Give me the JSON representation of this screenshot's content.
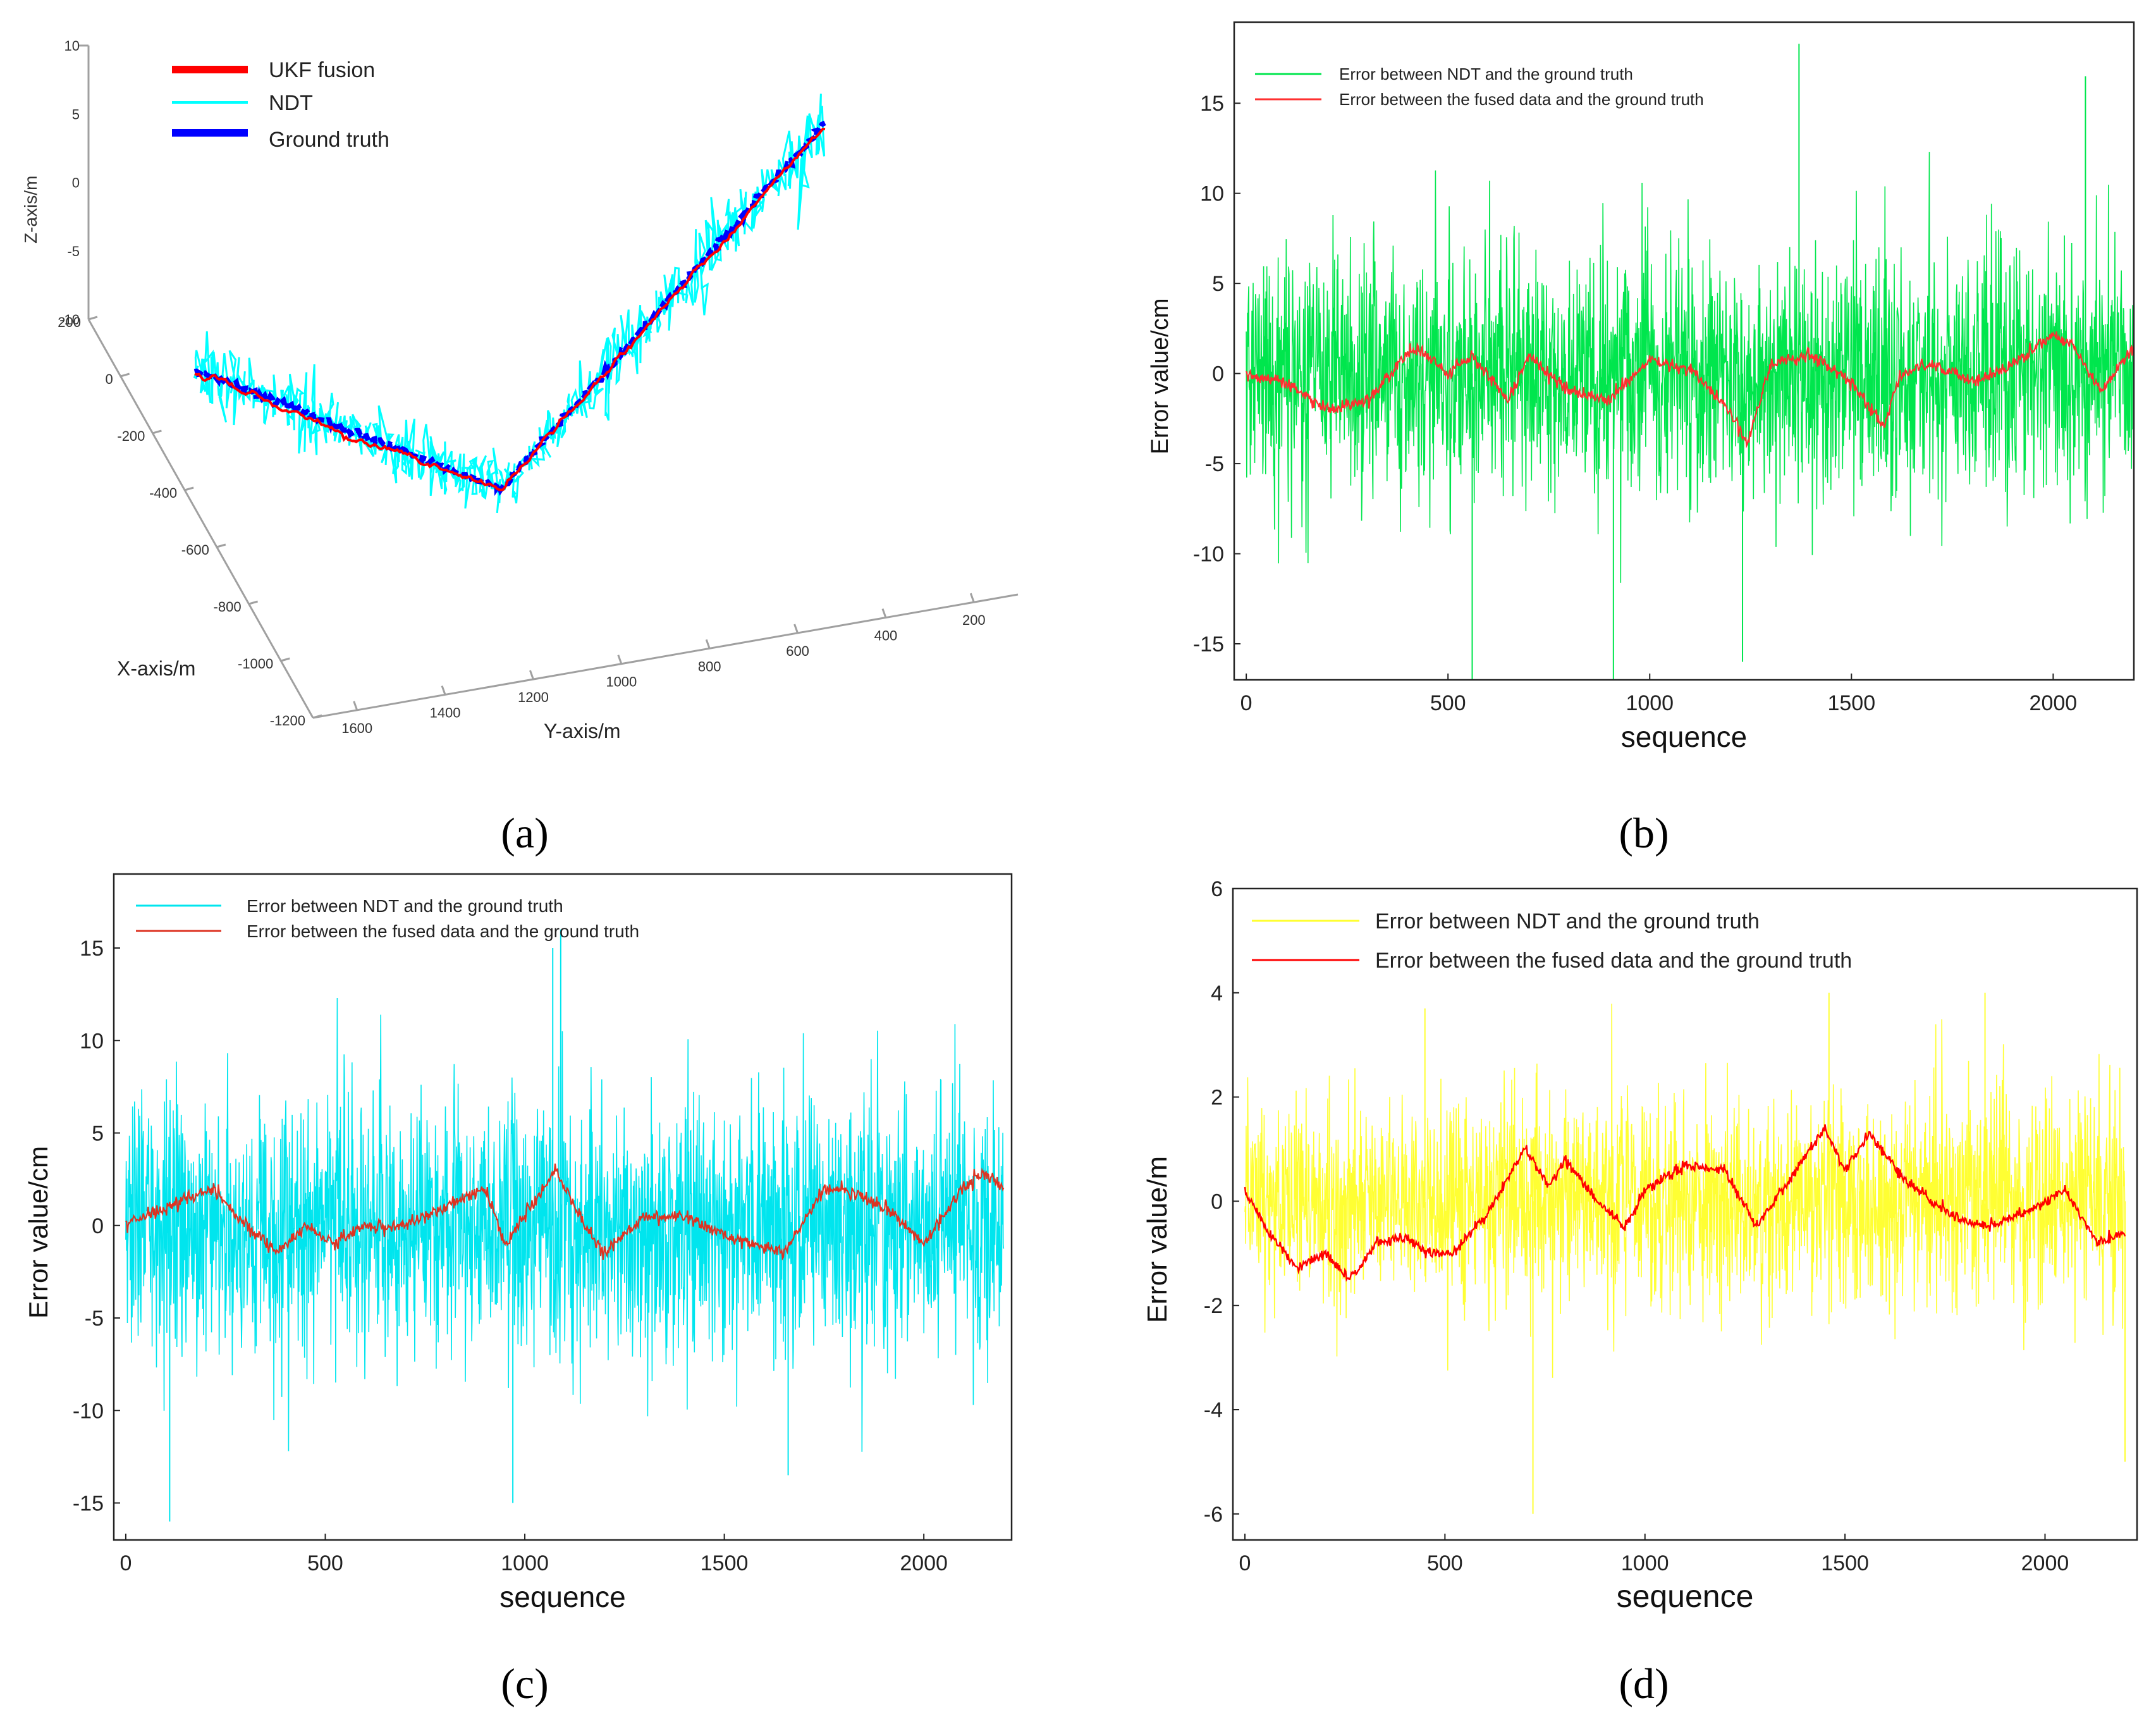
{
  "chart_data": [
    {
      "id": "a",
      "type": "line3d",
      "panel_label": "(a)",
      "xlabel": "X-axis/m",
      "ylabel": "Y-axis/m",
      "zlabel": "Z-axis/m",
      "x_ticks": [
        "200",
        "0",
        "-200",
        "-400",
        "-600",
        "-800",
        "-1000",
        "-1200"
      ],
      "y_ticks": [
        "1600",
        "1400",
        "1200",
        "1000",
        "800",
        "600",
        "400",
        "200"
      ],
      "z_ticks": [
        "10",
        "5",
        "0",
        "-5",
        "-10"
      ],
      "legend": [
        {
          "name": "UKF fusion",
          "color": "#ff0000"
        },
        {
          "name": "NDT",
          "color": "#00ffff"
        },
        {
          "name": "Ground truth",
          "color": "#0000ff"
        }
      ],
      "legend_position": "top-left",
      "trajectory_waypoints": [
        {
          "x": -80,
          "y": 1650,
          "z": 1.5
        },
        {
          "x": -700,
          "y": 1320,
          "z": -4.5
        },
        {
          "x": -250,
          "y": 200,
          "z": 7.5
        }
      ]
    },
    {
      "id": "b",
      "type": "line",
      "panel_label": "(b)",
      "xlabel": "sequence",
      "ylabel": "Error value/cm",
      "xlim": [
        -30,
        2200
      ],
      "ylim": [
        -17,
        19.5
      ],
      "x_ticks": [
        0,
        500,
        1000,
        1500,
        2000
      ],
      "y_ticks": [
        -15,
        -10,
        -5,
        0,
        5,
        10,
        15
      ],
      "legend_position": "top-left",
      "series": [
        {
          "name": "Error between NDT and the ground truth",
          "color": "#00e64d",
          "noise_amplitude": 5.5,
          "extreme_spikes": [
            [
              560,
              -17
            ],
            [
              910,
              -17
            ],
            [
              1370,
              18.3
            ],
            [
              2080,
              16.5
            ],
            [
              1230,
              -16
            ]
          ]
        },
        {
          "name": "Error between the fused data and the ground truth",
          "color": "#ff3030",
          "x": [
            0,
            100,
            200,
            300,
            420,
            500,
            560,
            650,
            700,
            800,
            900,
            1000,
            1100,
            1200,
            1240,
            1300,
            1400,
            1500,
            1580,
            1620,
            1700,
            1800,
            1900,
            2000,
            2050,
            2120,
            2200
          ],
          "y": [
            0,
            -0.5,
            -2,
            -1.5,
            1.5,
            0,
            1,
            -1.5,
            1,
            -1,
            -1.5,
            0.8,
            0.2,
            -2,
            -4,
            0.5,
            1,
            -0.5,
            -3,
            0,
            0.5,
            -0.5,
            0.5,
            2.2,
            1.5,
            -1,
            1.5
          ]
        }
      ]
    },
    {
      "id": "c",
      "type": "line",
      "panel_label": "(c)",
      "xlabel": "sequence",
      "ylabel": "Error value/cm",
      "xlim": [
        -30,
        2220
      ],
      "ylim": [
        -17,
        19
      ],
      "x_ticks": [
        0,
        500,
        1000,
        1500,
        2000
      ],
      "y_ticks": [
        -15,
        -10,
        -5,
        0,
        5,
        10,
        15
      ],
      "legend_position": "top-left",
      "series": [
        {
          "name": "Error between NDT and the ground truth",
          "color": "#00e5ee",
          "noise_amplitude": 5.5,
          "extreme_spikes": [
            [
              110,
              -16
            ],
            [
              1090,
              16
            ],
            [
              1070,
              15
            ],
            [
              1660,
              -13.5
            ],
            [
              970,
              -15
            ]
          ]
        },
        {
          "name": "Error between the fused data and the ground truth",
          "color": "#dd3322",
          "x": [
            0,
            100,
            220,
            300,
            380,
            450,
            520,
            600,
            700,
            800,
            900,
            950,
            1080,
            1150,
            1200,
            1300,
            1400,
            1500,
            1650,
            1750,
            1800,
            1900,
            2000,
            2100,
            2150,
            2200
          ],
          "y": [
            0,
            1,
            2,
            0,
            -1.5,
            0,
            -1,
            0,
            0,
            1,
            2,
            -1,
            3,
            0,
            -1.5,
            0.5,
            0.5,
            -0.5,
            -1.5,
            2,
            2,
            1,
            -1,
            2,
            2.8,
            2
          ]
        }
      ]
    },
    {
      "id": "d",
      "type": "line",
      "panel_label": "(d)",
      "xlabel": "sequence",
      "ylabel": "Error value/m",
      "xlim": [
        -30,
        2230
      ],
      "ylim": [
        -6.5,
        6
      ],
      "x_ticks": [
        0,
        500,
        1000,
        1500,
        2000
      ],
      "y_ticks": [
        -6,
        -4,
        -2,
        0,
        2,
        4,
        6
      ],
      "legend_position": "top-left",
      "series": [
        {
          "name": "Error between NDT and the ground truth",
          "color": "#ffff33",
          "noise_amplitude": 1.6,
          "extreme_spikes": [
            [
              720,
              -6
            ],
            [
              1460,
              4
            ],
            [
              1850,
              4
            ],
            [
              450,
              3.7
            ],
            [
              2200,
              -5
            ]
          ]
        },
        {
          "name": "Error between the fused data and the ground truth",
          "color": "#ff0000",
          "x": [
            0,
            60,
            130,
            200,
            260,
            330,
            400,
            460,
            520,
            600,
            700,
            760,
            800,
            880,
            950,
            1000,
            1100,
            1200,
            1280,
            1350,
            1450,
            1500,
            1560,
            1650,
            1750,
            1850,
            1950,
            2050,
            2130,
            2200
          ],
          "y": [
            0.2,
            -0.6,
            -1.3,
            -1,
            -1.5,
            -0.8,
            -0.7,
            -1,
            -1,
            -0.3,
            1,
            0.3,
            0.8,
            0,
            -0.5,
            0.2,
            0.7,
            0.6,
            -0.5,
            0.3,
            1.4,
            0.6,
            1.3,
            0.4,
            -0.2,
            -0.5,
            -0.2,
            0.2,
            -0.8,
            -0.6
          ]
        }
      ]
    }
  ]
}
